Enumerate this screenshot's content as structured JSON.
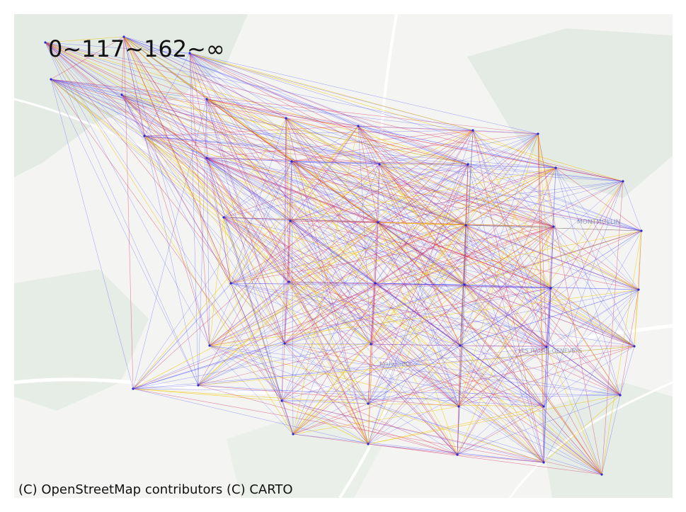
{
  "legend": {
    "title": "0~117~162~∞"
  },
  "attribution": "(C) OpenStreetMap contributors (C) CARTO",
  "basemap": {
    "place_labels": [
      "MONTMOLLIN",
      "Malvilliers",
      "LES HAUTS-GENEVEYS"
    ],
    "colors": {
      "land": "#f4f5f3",
      "forest": "#e4ebe5",
      "road": "#ffffff",
      "label": "#9aa3b5"
    }
  },
  "flows": {
    "colors": {
      "low": "#3b3bff",
      "mid": "#d62757",
      "high": "#f2c500"
    },
    "node_color": "#2a2ad0"
  }
}
